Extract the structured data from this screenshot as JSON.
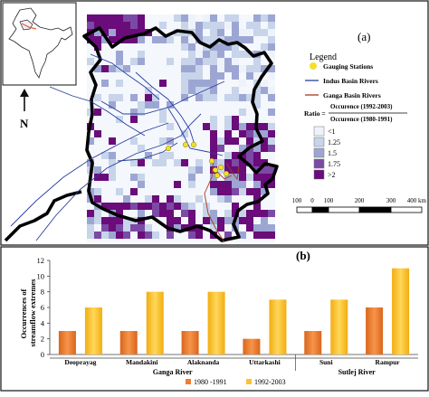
{
  "top_panel": {
    "panel_label": "(a)",
    "north_label": "N",
    "legend": {
      "title": "Legend",
      "items": [
        {
          "label": "Gauging Stations",
          "color": "#f2e02c",
          "symbol": "dot"
        },
        {
          "label": "Indus Basin Rivers",
          "color": "#2a3f9e",
          "symbol": "line"
        },
        {
          "label": "Ganga Basin Rivers",
          "color": "#a83a1f",
          "symbol": "line"
        }
      ],
      "ratio_prefix": "Ratio =",
      "ratio_numerator": "Occurence (1992-2003)",
      "ratio_denominator": "Occurence (1980-1991)",
      "color_classes": [
        {
          "label": "<1",
          "color": "#eef3fb"
        },
        {
          "label": "1.25",
          "color": "#c7d4ea"
        },
        {
          "label": "1.5",
          "color": "#9da6d3"
        },
        {
          "label": "1.75",
          "color": "#7b4aa5"
        },
        {
          "label": ">2",
          "color": "#6a0c7a"
        }
      ]
    },
    "scale_bar": {
      "ticks": [
        "100",
        "0",
        "100",
        "200",
        "300",
        "400 km"
      ]
    }
  },
  "chart_data": {
    "type": "bar",
    "panel_label": "(b)",
    "categories": [
      "Deoprayag",
      "Mandakini",
      "Alaknanda",
      "Uttarkashi",
      "Suni",
      "Rampur"
    ],
    "groups": [
      {
        "label": "Ganga River",
        "categories": [
          "Deoprayag",
          "Mandakini",
          "Alaknanda",
          "Uttarkashi"
        ]
      },
      {
        "label": "Sutlej River",
        "categories": [
          "Suni",
          "Rampur"
        ]
      }
    ],
    "series": [
      {
        "name": "1980 -1991",
        "color": "#ee7d2e",
        "values": [
          3,
          3,
          3,
          2,
          3,
          6
        ]
      },
      {
        "name": "1992-2003",
        "color": "#fec133",
        "values": [
          6,
          8,
          8,
          7,
          7,
          11
        ]
      }
    ],
    "ylabel": "Occurrences of streamflow extremes",
    "ylim": [
      0,
      12
    ],
    "yticks": [
      "0",
      "2",
      "4",
      "6",
      "8",
      "10",
      "12"
    ],
    "grid": false,
    "legend_position": "bottom"
  }
}
